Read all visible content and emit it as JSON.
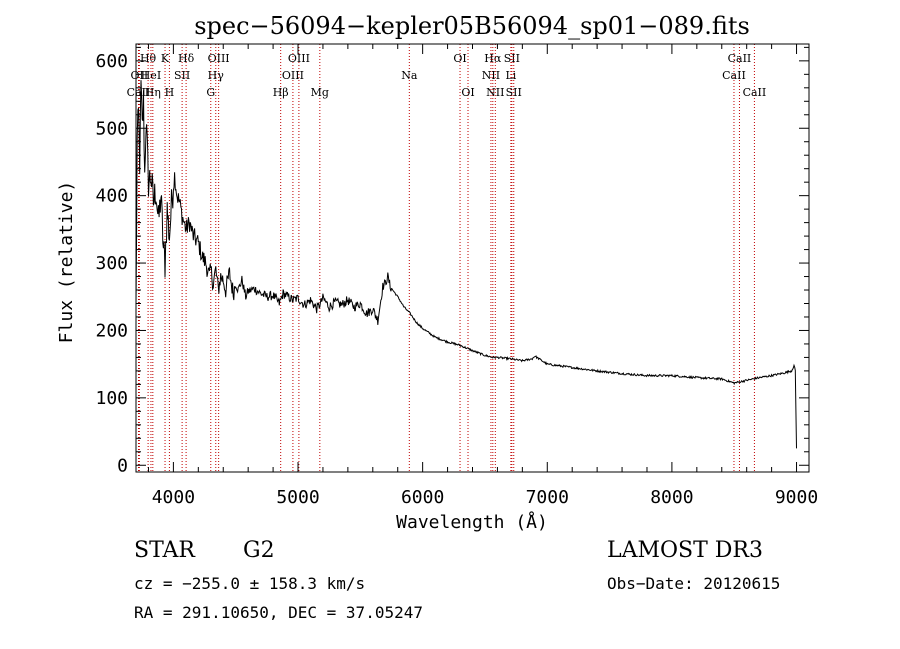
{
  "chart_data": {
    "type": "line",
    "title": "spec−56094−kepler05B56094_sp01−089.fits",
    "xlabel": "Wavelength (Å)",
    "ylabel": "Flux (relative)",
    "xlim": [
      3700,
      9100
    ],
    "ylim": [
      -10,
      625
    ],
    "xticks": [
      4000,
      5000,
      6000,
      7000,
      8000,
      9000
    ],
    "xtick_labels": [
      "4000",
      "5000",
      "6000",
      "7000",
      "8000",
      "9000"
    ],
    "yticks": [
      0,
      100,
      200,
      300,
      400,
      500,
      600
    ],
    "ytick_labels": [
      "0",
      "100",
      "200",
      "300",
      "400",
      "500",
      "600"
    ],
    "spectrum": {
      "name": "flux",
      "x": [
        3700,
        3710,
        3720,
        3730,
        3740,
        3750,
        3760,
        3770,
        3780,
        3790,
        3800,
        3820,
        3840,
        3860,
        3880,
        3900,
        3920,
        3933,
        3950,
        3968,
        3990,
        4010,
        4030,
        4050,
        4070,
        4102,
        4130,
        4160,
        4200,
        4230,
        4260,
        4290,
        4300,
        4320,
        4340,
        4360,
        4380,
        4400,
        4420,
        4450,
        4480,
        4500,
        4520,
        4550,
        4580,
        4600,
        4650,
        4700,
        4750,
        4800,
        4850,
        4861,
        4880,
        4920,
        4960,
        5000,
        5050,
        5100,
        5150,
        5180,
        5200,
        5250,
        5300,
        5350,
        5400,
        5450,
        5500,
        5550,
        5600,
        5640,
        5660,
        5680,
        5700,
        5720,
        5740,
        5760,
        5780,
        5800,
        5850,
        5900,
        5950,
        6000,
        6100,
        6200,
        6300,
        6400,
        6500,
        6563,
        6600,
        6700,
        6800,
        6880,
        6900,
        7000,
        7200,
        7400,
        7600,
        7800,
        8000,
        8200,
        8400,
        8500,
        8600,
        8700,
        8800,
        8900,
        8960,
        8980,
        8990,
        9000
      ],
      "y": [
        230,
        480,
        520,
        450,
        560,
        500,
        540,
        430,
        510,
        470,
        420,
        430,
        390,
        410,
        360,
        400,
        320,
        300,
        380,
        340,
        400,
        430,
        400,
        390,
        370,
        350,
        360,
        340,
        330,
        310,
        300,
        280,
        290,
        270,
        290,
        260,
        280,
        275,
        260,
        285,
        255,
        270,
        260,
        275,
        250,
        258,
        262,
        255,
        250,
        252,
        240,
        245,
        255,
        250,
        245,
        248,
        238,
        245,
        232,
        240,
        248,
        235,
        242,
        238,
        245,
        235,
        240,
        225,
        232,
        215,
        240,
        265,
        270,
        280,
        265,
        260,
        255,
        250,
        235,
        225,
        212,
        203,
        190,
        183,
        178,
        170,
        163,
        160,
        160,
        158,
        155,
        158,
        162,
        150,
        145,
        140,
        136,
        133,
        133,
        130,
        128,
        122,
        126,
        130,
        133,
        137,
        140,
        148,
        140,
        25
      ]
    },
    "lines": [
      {
        "label": "Hθ",
        "x": 3797,
        "row": 1
      },
      {
        "label": "OII",
        "x": 3727,
        "row": 2
      },
      {
        "label": "CaII",
        "x": 3720,
        "row": 3
      },
      {
        "label": "K",
        "x": 3933,
        "row": 1
      },
      {
        "label": "HeI",
        "x": 3820,
        "row": 2
      },
      {
        "label": "Hη",
        "x": 3835,
        "row": 3
      },
      {
        "label": "Hδ",
        "x": 4102,
        "row": 1
      },
      {
        "label": "SII",
        "x": 4070,
        "row": 2
      },
      {
        "label": "H",
        "x": 3968,
        "row": 3
      },
      {
        "label": "OIII",
        "x": 4363,
        "row": 1
      },
      {
        "label": "Hγ",
        "x": 4340,
        "row": 2
      },
      {
        "label": "G",
        "x": 4300,
        "row": 3
      },
      {
        "label": "OIII",
        "x": 5007,
        "row": 1
      },
      {
        "label": "OIII",
        "x": 4959,
        "row": 2
      },
      {
        "label": "Hβ",
        "x": 4861,
        "row": 3
      },
      {
        "label": "Mg",
        "x": 5175,
        "row": 3
      },
      {
        "label": "Na",
        "x": 5893,
        "row": 2
      },
      {
        "label": "OI",
        "x": 6300,
        "row": 1
      },
      {
        "label": "OI",
        "x": 6364,
        "row": 3
      },
      {
        "label": "Hα",
        "x": 6563,
        "row": 1
      },
      {
        "label": "SII",
        "x": 6716,
        "row": 1
      },
      {
        "label": "NII",
        "x": 6548,
        "row": 2
      },
      {
        "label": "Li",
        "x": 6708,
        "row": 2
      },
      {
        "label": "NII",
        "x": 6583,
        "row": 3
      },
      {
        "label": "SII",
        "x": 6731,
        "row": 3
      },
      {
        "label": "CaII",
        "x": 8542,
        "row": 1
      },
      {
        "label": "CaII",
        "x": 8498,
        "row": 2
      },
      {
        "label": "CaII",
        "x": 8662,
        "row": 3
      }
    ]
  },
  "info": {
    "object_class": "STAR",
    "subclass": "G2",
    "survey": "LAMOST DR3",
    "cz": "cz = −255.0 ± 158.3 km/s",
    "obs_date": "Obs−Date: 20120615",
    "coords": "RA = 291.10650, DEC =  37.05247"
  }
}
